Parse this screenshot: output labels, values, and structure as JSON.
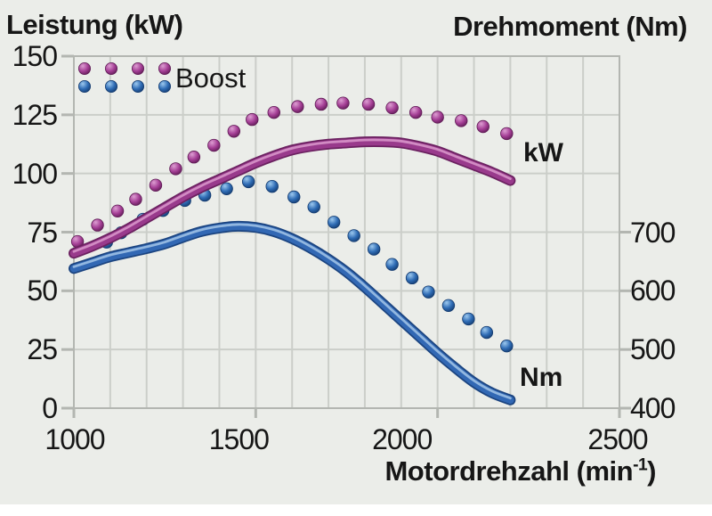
{
  "titles": {
    "left_axis": "Leistung (kW)",
    "right_axis": "Drehmoment (Nm)"
  },
  "x_axis_label": {
    "main": "Motordrehzahl (min",
    "sup": "-1",
    "end": ")"
  },
  "legend": {
    "label": "Boost"
  },
  "curve_labels": {
    "power": "kW",
    "torque": "Nm"
  },
  "colors": {
    "background": "#ebede9",
    "grid": "#cbcec9",
    "axis": "#b3b6b1",
    "text": "#161616",
    "purple_main": "#993a8c",
    "purple_dark": "#6b2160",
    "purple_light": "#d795c9",
    "blue_main": "#3268b4",
    "blue_dark": "#1b4480",
    "blue_light": "#9cc0e4"
  },
  "chart_data": {
    "type": "line",
    "title": "",
    "x": {
      "label": "Motordrehzahl (min-1)",
      "min": 1000,
      "max": 2500,
      "grid_step": 100,
      "tick_values": [
        1000,
        1500,
        2000,
        2500
      ],
      "tick_labels": [
        "1000",
        "1500",
        "2000",
        "2500"
      ]
    },
    "y_left": {
      "label": "Leistung (kW)",
      "min": 0,
      "max": 150,
      "grid_step": 25,
      "tick_values": [
        150,
        125,
        100,
        75,
        50,
        25,
        0
      ],
      "tick_labels": [
        "150",
        "125",
        "100",
        "75",
        "50",
        "25",
        "0"
      ]
    },
    "y_right": {
      "label": "Drehmoment (Nm)",
      "min": 400,
      "max": 1000,
      "tick_values": [
        700,
        600,
        500,
        400
      ],
      "tick_labels": [
        "700",
        "600",
        "500",
        "400"
      ]
    },
    "grid": true,
    "legend_position": "top-left-inside",
    "series": [
      {
        "name": "Boost Drehmoment",
        "axis": "right",
        "line": "dotted",
        "color_main": "#2f6cb5",
        "color_dark": "#133a6e",
        "color_light": "#9cc8ee",
        "points": [
          [
            1090,
            683
          ],
          [
            1130,
            699
          ],
          [
            1190,
            722
          ],
          [
            1245,
            737
          ],
          [
            1305,
            754
          ],
          [
            1360,
            763
          ],
          [
            1420,
            774
          ],
          [
            1480,
            786
          ],
          [
            1545,
            778
          ],
          [
            1605,
            760
          ],
          [
            1660,
            743
          ],
          [
            1715,
            717
          ],
          [
            1770,
            694
          ],
          [
            1825,
            671
          ],
          [
            1875,
            645
          ],
          [
            1930,
            622
          ],
          [
            1975,
            598
          ],
          [
            2030,
            575
          ],
          [
            2085,
            552
          ],
          [
            2135,
            529
          ],
          [
            2190,
            506
          ]
        ]
      },
      {
        "name": "Boost Leistung",
        "axis": "left",
        "line": "dotted",
        "color_main": "#a53f96",
        "color_dark": "#5f1b55",
        "color_light": "#dd9ed2",
        "points": [
          [
            1010,
            71
          ],
          [
            1065,
            78
          ],
          [
            1120,
            84
          ],
          [
            1170,
            89
          ],
          [
            1225,
            95
          ],
          [
            1280,
            102
          ],
          [
            1330,
            107
          ],
          [
            1385,
            112
          ],
          [
            1440,
            118
          ],
          [
            1490,
            123
          ],
          [
            1550,
            126
          ],
          [
            1615,
            128.5
          ],
          [
            1680,
            129.5
          ],
          [
            1740,
            130
          ],
          [
            1810,
            129.5
          ],
          [
            1875,
            128
          ],
          [
            1940,
            126
          ],
          [
            2000,
            124
          ],
          [
            2065,
            122.5
          ],
          [
            2125,
            120
          ],
          [
            2190,
            117
          ]
        ]
      },
      {
        "name": "Drehmoment",
        "axis": "right",
        "line": "solid",
        "color_main": "#3268b4",
        "color_dark": "#1b4480",
        "color_light": "#9cc0e4",
        "points": [
          [
            1000,
            638
          ],
          [
            1050,
            648
          ],
          [
            1100,
            658
          ],
          [
            1150,
            665
          ],
          [
            1200,
            672
          ],
          [
            1250,
            680
          ],
          [
            1300,
            691
          ],
          [
            1350,
            701
          ],
          [
            1400,
            707
          ],
          [
            1450,
            710
          ],
          [
            1500,
            708
          ],
          [
            1550,
            701
          ],
          [
            1600,
            689
          ],
          [
            1650,
            673
          ],
          [
            1700,
            654
          ],
          [
            1750,
            632
          ],
          [
            1800,
            606
          ],
          [
            1850,
            578
          ],
          [
            1900,
            550
          ],
          [
            1950,
            522
          ],
          [
            2000,
            494
          ],
          [
            2050,
            468
          ],
          [
            2100,
            444
          ],
          [
            2150,
            426
          ],
          [
            2200,
            414
          ]
        ]
      },
      {
        "name": "Leistung",
        "axis": "left",
        "line": "solid",
        "color_main": "#993a8c",
        "color_dark": "#6b2160",
        "color_light": "#d795c9",
        "points": [
          [
            1000,
            66
          ],
          [
            1050,
            69
          ],
          [
            1100,
            72.5
          ],
          [
            1150,
            76.5
          ],
          [
            1200,
            81
          ],
          [
            1250,
            85.5
          ],
          [
            1300,
            90
          ],
          [
            1350,
            94
          ],
          [
            1400,
            97.5
          ],
          [
            1450,
            101
          ],
          [
            1500,
            104.5
          ],
          [
            1550,
            107.5
          ],
          [
            1600,
            110
          ],
          [
            1650,
            111.5
          ],
          [
            1700,
            112.5
          ],
          [
            1750,
            113
          ],
          [
            1800,
            113.5
          ],
          [
            1850,
            113.5
          ],
          [
            1900,
            113
          ],
          [
            1950,
            111.5
          ],
          [
            2000,
            109.5
          ],
          [
            2050,
            106.5
          ],
          [
            2100,
            103.5
          ],
          [
            2150,
            100.5
          ],
          [
            2200,
            97
          ]
        ]
      }
    ]
  }
}
